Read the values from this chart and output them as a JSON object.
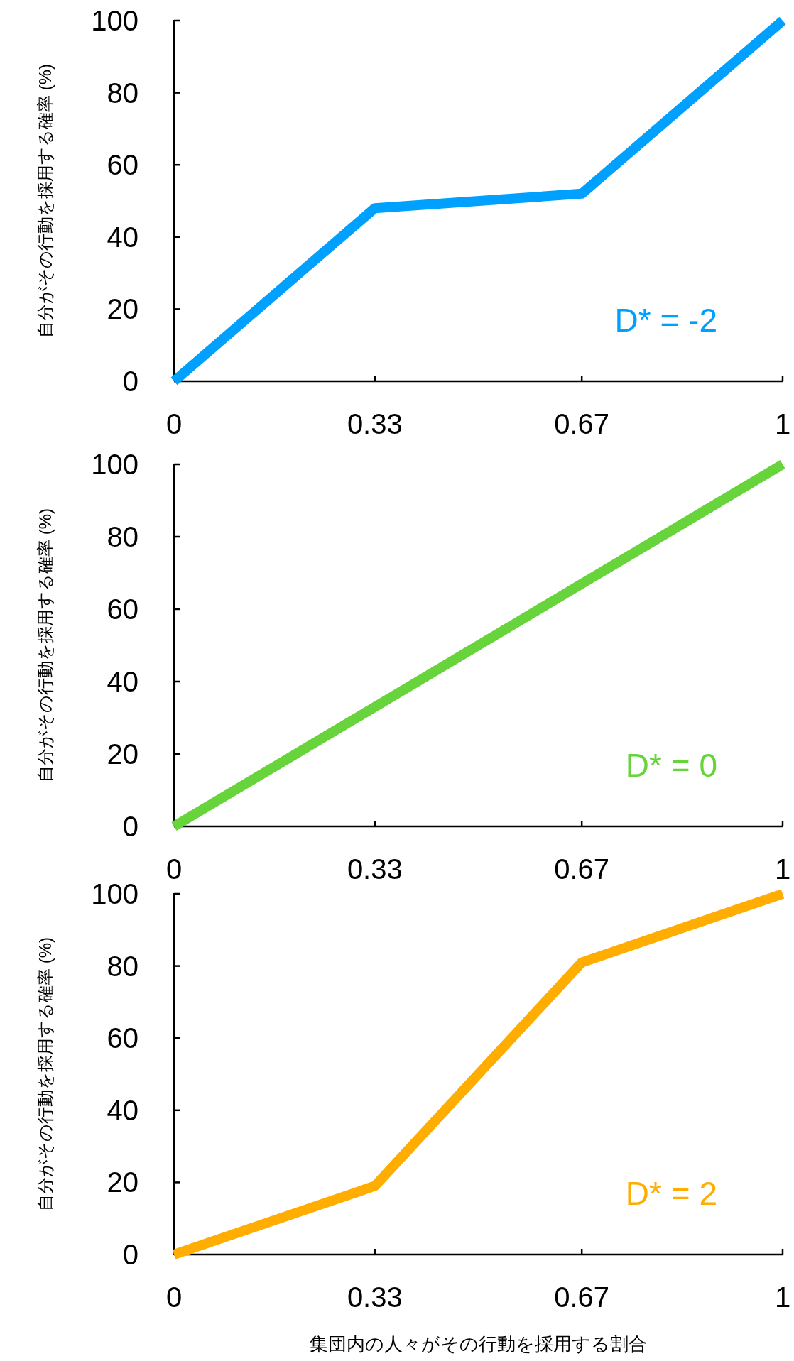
{
  "chart_data": [
    {
      "type": "line",
      "ylabel": "自分がその行動を採用する確率 (%)",
      "x": [
        0,
        0.33,
        0.67,
        1
      ],
      "xlim": [
        0,
        1
      ],
      "xticks": [
        0,
        0.33,
        0.67,
        1
      ],
      "ylim": [
        0,
        100
      ],
      "yticks": [
        0,
        20,
        40,
        60,
        80,
        100
      ],
      "annotations": [
        "D* = -2"
      ],
      "series": [
        {
          "color": "#00a0ff",
          "values": [
            0,
            48,
            52,
            100
          ]
        }
      ]
    },
    {
      "type": "line",
      "ylabel": "自分がその行動を採用する確率 (%)",
      "x": [
        0,
        0.33,
        0.67,
        1
      ],
      "xlim": [
        0,
        1
      ],
      "xticks": [
        0,
        0.33,
        0.67,
        1
      ],
      "ylim": [
        0,
        100
      ],
      "yticks": [
        0,
        20,
        40,
        60,
        80,
        100
      ],
      "annotations": [
        "D* = 0"
      ],
      "series": [
        {
          "color": "#66d43a",
          "values": [
            0,
            33,
            67,
            100
          ]
        }
      ]
    },
    {
      "type": "line",
      "ylabel": "自分がその行動を採用する確率 (%)",
      "xlabel": "集団内の人々がその行動を採用する割合",
      "x": [
        0,
        0.33,
        0.67,
        1
      ],
      "xlim": [
        0,
        1
      ],
      "xticks": [
        0,
        0.33,
        0.67,
        1
      ],
      "ylim": [
        0,
        100
      ],
      "yticks": [
        0,
        20,
        40,
        60,
        80,
        100
      ],
      "annotations": [
        "D* = 2"
      ],
      "series": [
        {
          "color": "#ffad00",
          "values": [
            0,
            19,
            81,
            100
          ]
        }
      ]
    }
  ]
}
